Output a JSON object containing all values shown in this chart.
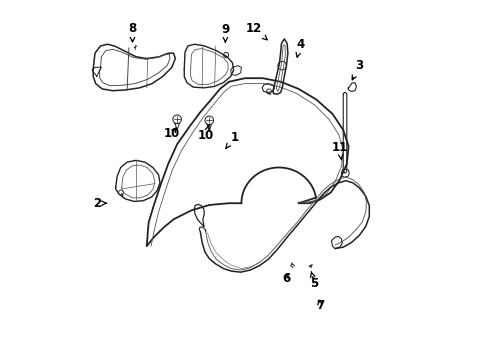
{
  "background_color": "#ffffff",
  "line_color": "#222222",
  "figsize": [
    4.9,
    3.6
  ],
  "dpi": 100,
  "label_positions": {
    "1": [
      0.47,
      0.62,
      0.44,
      0.58
    ],
    "2": [
      0.085,
      0.435,
      0.115,
      0.435
    ],
    "3": [
      0.82,
      0.82,
      0.795,
      0.77
    ],
    "4": [
      0.655,
      0.88,
      0.645,
      0.84
    ],
    "5": [
      0.695,
      0.21,
      0.685,
      0.245
    ],
    "6": [
      0.615,
      0.225,
      0.625,
      0.248
    ],
    "7": [
      0.71,
      0.15,
      0.705,
      0.175
    ],
    "8": [
      0.185,
      0.925,
      0.185,
      0.875
    ],
    "9": [
      0.445,
      0.92,
      0.445,
      0.875
    ],
    "10a": [
      0.295,
      0.63,
      0.315,
      0.655
    ],
    "10b": [
      0.39,
      0.625,
      0.4,
      0.655
    ],
    "11": [
      0.765,
      0.59,
      0.77,
      0.555
    ],
    "12": [
      0.525,
      0.925,
      0.565,
      0.89
    ]
  }
}
